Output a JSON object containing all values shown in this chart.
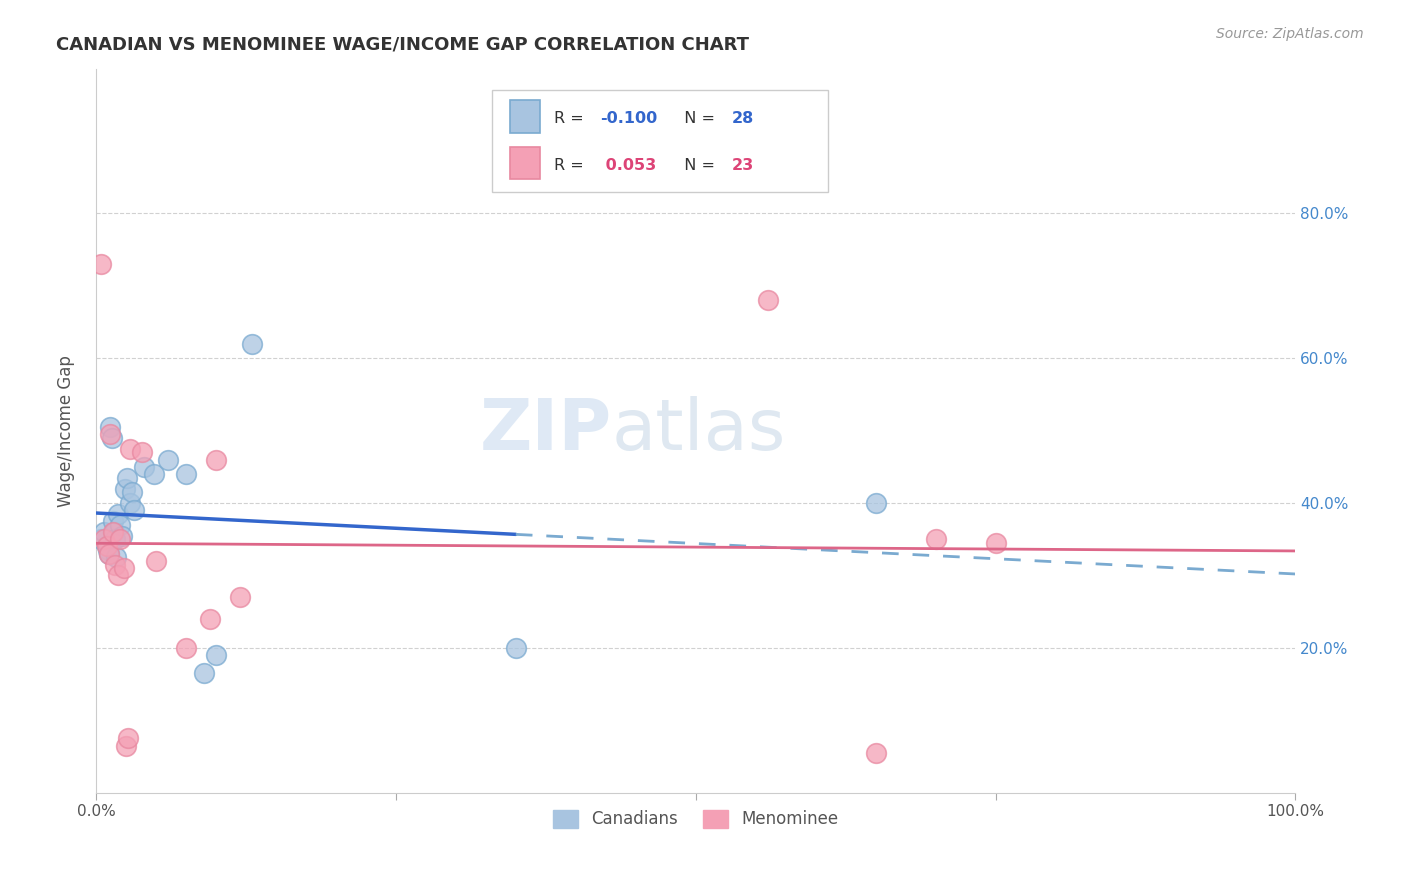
{
  "title": "CANADIAN VS MENOMINEE WAGE/INCOME GAP CORRELATION CHART",
  "source": "Source: ZipAtlas.com",
  "ylabel": "Wage/Income Gap",
  "legend_blue_label": "Canadians",
  "legend_pink_label": "Menominee",
  "xlim": [
    0.0,
    1.0
  ],
  "ylim": [
    0.0,
    1.0
  ],
  "blue_x": [
    0.004,
    0.007,
    0.009,
    0.01,
    0.011,
    0.012,
    0.013,
    0.014,
    0.015,
    0.016,
    0.017,
    0.018,
    0.02,
    0.022,
    0.024,
    0.026,
    0.028,
    0.03,
    0.032,
    0.04,
    0.048,
    0.06,
    0.075,
    0.09,
    0.1,
    0.13,
    0.35,
    0.65
  ],
  "blue_y": [
    0.35,
    0.36,
    0.34,
    0.335,
    0.33,
    0.505,
    0.49,
    0.375,
    0.36,
    0.35,
    0.325,
    0.385,
    0.37,
    0.355,
    0.42,
    0.435,
    0.4,
    0.415,
    0.39,
    0.45,
    0.44,
    0.46,
    0.44,
    0.165,
    0.19,
    0.62,
    0.2,
    0.4
  ],
  "pink_x": [
    0.004,
    0.007,
    0.009,
    0.011,
    0.012,
    0.014,
    0.016,
    0.018,
    0.02,
    0.023,
    0.028,
    0.038,
    0.05,
    0.075,
    0.095,
    0.1,
    0.12,
    0.56,
    0.65,
    0.7,
    0.025,
    0.027,
    0.75
  ],
  "pink_y": [
    0.73,
    0.35,
    0.34,
    0.33,
    0.495,
    0.36,
    0.315,
    0.3,
    0.35,
    0.31,
    0.475,
    0.47,
    0.32,
    0.2,
    0.24,
    0.46,
    0.27,
    0.68,
    0.055,
    0.35,
    0.065,
    0.075,
    0.345
  ],
  "yticks": [
    0.2,
    0.4,
    0.6,
    0.8
  ],
  "ytick_labels_right": [
    "20.0%",
    "40.0%",
    "60.0%",
    "80.0%"
  ],
  "grid_color": "#cccccc",
  "background_color": "#ffffff",
  "blue_color": "#a8c4e0",
  "blue_edge_color": "#7aaad0",
  "pink_color": "#f4a0b5",
  "pink_edge_color": "#e888a0",
  "blue_solid_color": "#3366cc",
  "blue_dash_color": "#7aaad0",
  "pink_solid_color": "#dd6688",
  "title_color": "#333333",
  "source_color": "#999999",
  "ylabel_color": "#555555",
  "right_tick_color": "#4488cc"
}
